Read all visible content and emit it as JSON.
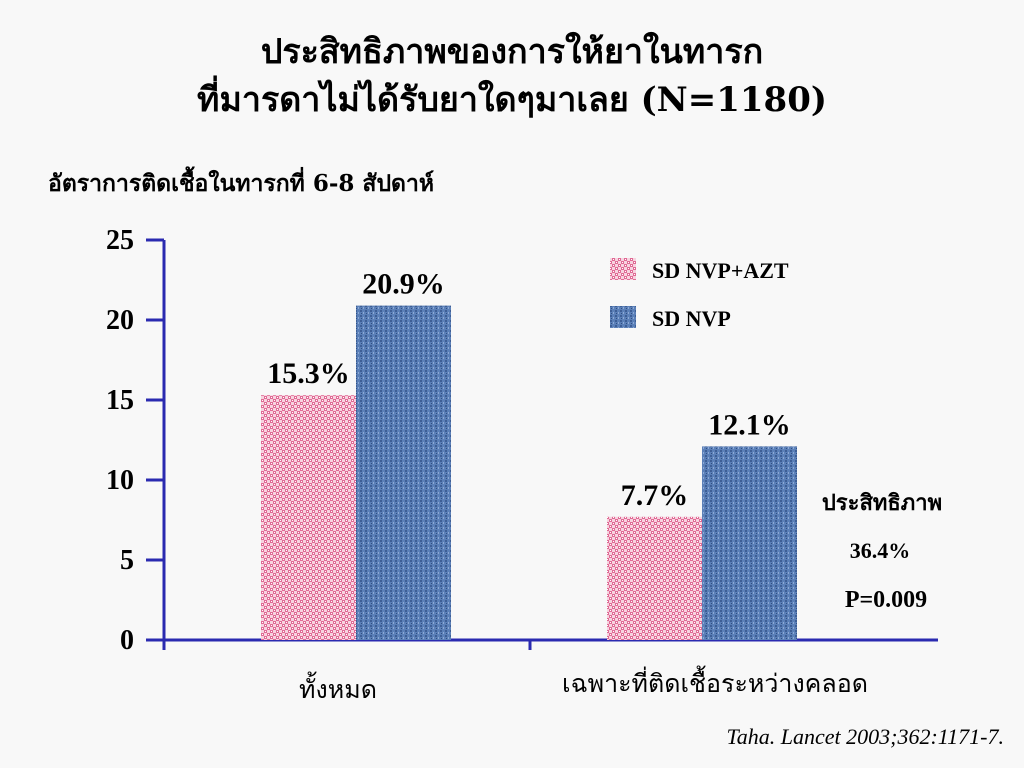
{
  "slide": {
    "title_line1": "ประสิทธิภาพของการให้ยาในทารก",
    "title_line2": "ที่มารดาไม่ได้รับยาใดๆมาเลย (N=1180)",
    "citation": "Taha. Lancet 2003;362:1171-7."
  },
  "chart_data": {
    "type": "bar",
    "title": "",
    "ylabel": "อัตราการติดเชื้อในทารกที่ 6-8 สัปดาห์",
    "xlabel": "",
    "ylim": [
      0,
      25
    ],
    "yticks": [
      0,
      5,
      10,
      15,
      20,
      25
    ],
    "categories": [
      "ทั้งหมด",
      "เฉพาะที่ติดเชื้อระหว่างคลอด"
    ],
    "series": [
      {
        "name": "SD NVP+AZT",
        "values": [
          15.3,
          7.7
        ],
        "labels": [
          "15.3%",
          "7.7%"
        ],
        "color": "#e8709a"
      },
      {
        "name": "SD NVP",
        "values": [
          20.9,
          12.1
        ],
        "labels": [
          "20.9%",
          "12.1%"
        ],
        "color": "#5b80b8"
      }
    ],
    "legend": "top-right",
    "grid": false,
    "annotation": {
      "line1": "ประสิทธิภาพ",
      "line2": "36.4%",
      "line3": "P=0.009"
    },
    "axis_color": "#2a2ab0"
  }
}
